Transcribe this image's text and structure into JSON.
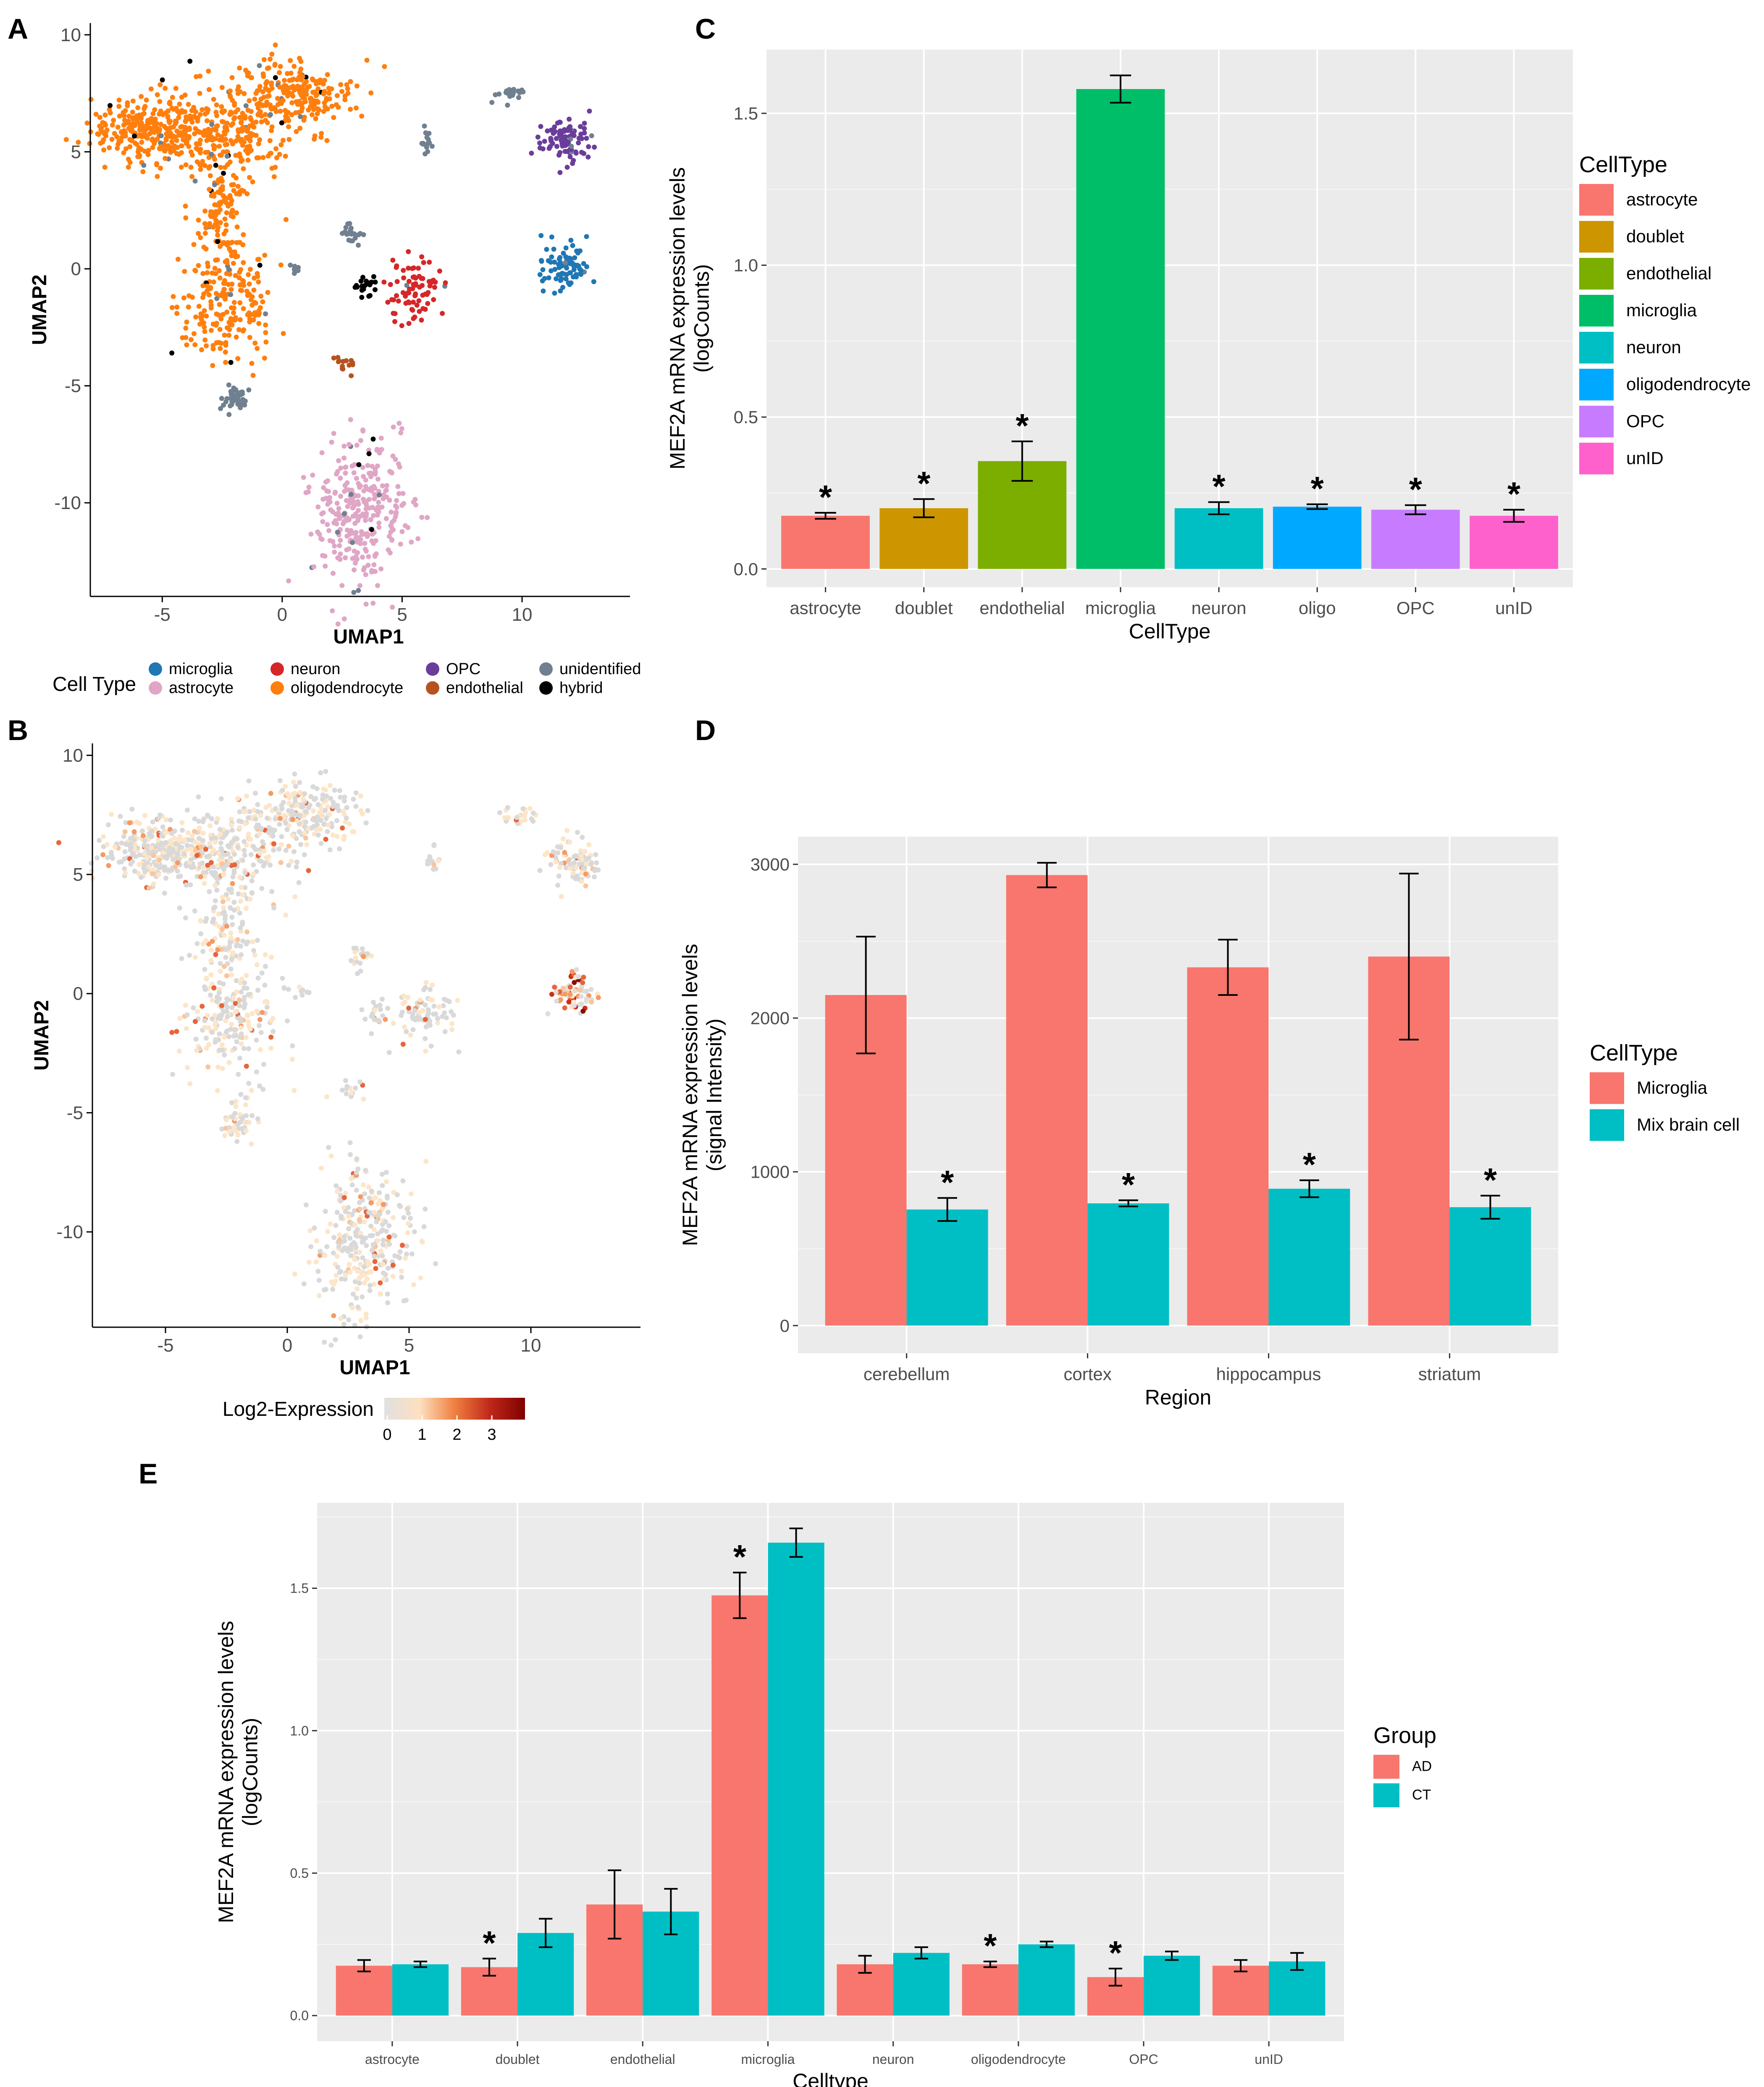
{
  "panels": {
    "a": "A",
    "b": "B",
    "c": "C",
    "d": "D",
    "e": "E"
  },
  "chart_data": [
    {
      "panel": "A",
      "type": "scatter",
      "title": "",
      "xlabel": "UMAP1",
      "ylabel": "UMAP2",
      "xlim": [
        -8,
        14.5
      ],
      "ylim": [
        -14,
        10.5
      ],
      "xticks": [
        -5,
        0,
        5,
        10
      ],
      "yticks": [
        -10,
        -5,
        0,
        5,
        10
      ],
      "legend_title": "Cell Type",
      "legend": [
        {
          "label": "microglia",
          "color": "#1f77b4"
        },
        {
          "label": "astrocyte",
          "color": "#e0a6c6"
        },
        {
          "label": "neuron",
          "color": "#d62728"
        },
        {
          "label": "oligodendrocyte",
          "color": "#ff7f0e"
        },
        {
          "label": "OPC",
          "color": "#6a3d9a"
        },
        {
          "label": "endothelial",
          "color": "#b5531f"
        },
        {
          "label": "unidentified",
          "color": "#708090"
        },
        {
          "label": "hybrid",
          "color": "#000000"
        }
      ],
      "clusters": [
        {
          "type": "oligodendrocyte",
          "cx": -5.5,
          "cy": 6,
          "rx": 2.2,
          "ry": 1.3,
          "n": 260
        },
        {
          "type": "oligodendrocyte",
          "cx": -2.5,
          "cy": 5.8,
          "rx": 2.5,
          "ry": 1.6,
          "n": 260
        },
        {
          "type": "oligodendrocyte",
          "cx": 0.5,
          "cy": 7.5,
          "rx": 2.2,
          "ry": 1.3,
          "n": 220
        },
        {
          "type": "oligodendrocyte",
          "cx": -2.5,
          "cy": 2.5,
          "rx": 1.0,
          "ry": 2.0,
          "n": 110
        },
        {
          "type": "oligodendrocyte",
          "cx": -2.3,
          "cy": -1.2,
          "rx": 1.8,
          "ry": 2.5,
          "n": 210
        },
        {
          "type": "astrocyte",
          "cx": 3.2,
          "cy": -10.5,
          "rx": 1.8,
          "ry": 2.8,
          "n": 320
        },
        {
          "type": "OPC",
          "cx": 11.8,
          "cy": 5.5,
          "rx": 1.0,
          "ry": 0.9,
          "n": 90
        },
        {
          "type": "microglia",
          "cx": 11.8,
          "cy": 0,
          "rx": 0.9,
          "ry": 0.9,
          "n": 80
        },
        {
          "type": "neuron",
          "cx": 5.5,
          "cy": -0.8,
          "rx": 1.2,
          "ry": 1.2,
          "n": 80
        },
        {
          "type": "unidentified",
          "cx": -2.0,
          "cy": -5.5,
          "rx": 0.6,
          "ry": 0.5,
          "n": 40
        },
        {
          "type": "unidentified",
          "cx": 9.6,
          "cy": 7.5,
          "rx": 0.7,
          "ry": 0.4,
          "n": 25
        },
        {
          "type": "unidentified",
          "cx": 3,
          "cy": 1.5,
          "rx": 0.4,
          "ry": 0.5,
          "n": 20
        },
        {
          "type": "unidentified",
          "cx": 6,
          "cy": 5.5,
          "rx": 0.2,
          "ry": 0.5,
          "n": 15
        },
        {
          "type": "endothelial",
          "cx": 2.5,
          "cy": -4,
          "rx": 0.6,
          "ry": 0.4,
          "n": 14
        },
        {
          "type": "hybrid",
          "cx": 3.5,
          "cy": -0.8,
          "rx": 0.6,
          "ry": 0.5,
          "n": 20
        },
        {
          "type": "unidentified",
          "cx": 0.5,
          "cy": 0,
          "rx": 0.3,
          "ry": 0.3,
          "n": 8
        }
      ]
    },
    {
      "panel": "B",
      "type": "scatter",
      "title": "",
      "xlabel": "UMAP1",
      "ylabel": "UMAP2",
      "xlim": [
        -8,
        14.5
      ],
      "ylim": [
        -14,
        10.5
      ],
      "xticks": [
        -5,
        0,
        5,
        10
      ],
      "yticks": [
        -10,
        -5,
        0,
        5,
        10
      ],
      "colorbar_title": "Log2-Expression",
      "colorbar_ticks": [
        0,
        1,
        2,
        3
      ],
      "colorbar_colors": [
        "#e0e0e0",
        "#fde0c0",
        "#f08040",
        "#c0281a",
        "#7f0000"
      ]
    },
    {
      "panel": "C",
      "type": "bar",
      "title": "",
      "xlabel": "CellType",
      "ylabel": "MEF2A mRNA expression levels",
      "ylabel2": "(logCounts)",
      "categories": [
        "astrocyte",
        "doublet",
        "endothelial",
        "microglia",
        "neuron",
        "oligo",
        "OPC",
        "unID"
      ],
      "values": [
        0.175,
        0.2,
        0.355,
        1.58,
        0.2,
        0.205,
        0.195,
        0.175
      ],
      "errors": [
        0.01,
        0.03,
        0.065,
        0.045,
        0.02,
        0.008,
        0.015,
        0.02
      ],
      "significant": [
        true,
        true,
        true,
        false,
        true,
        true,
        true,
        true
      ],
      "colors": [
        "#f8766d",
        "#cd9600",
        "#7cae00",
        "#00be67",
        "#00bfc4",
        "#00a9ff",
        "#c77cff",
        "#ff61cc"
      ],
      "ylim": [
        -0.06,
        1.71
      ],
      "yticks": [
        0.0,
        0.5,
        1.0,
        1.5
      ],
      "ytick_labels": [
        "0.0",
        "0.5",
        "1.0",
        "1.5"
      ],
      "legend_title": "CellType",
      "legend_labels": [
        "astrocyte",
        "doublet",
        "endothelial",
        "microglia",
        "neuron",
        "oligodendrocyte",
        "OPC",
        "unID"
      ]
    },
    {
      "panel": "D",
      "type": "bar",
      "title": "",
      "xlabel": "Region",
      "ylabel": "MEF2A mRNA expression levels",
      "ylabel2": "(signal Intensity)",
      "categories": [
        "cerebellum",
        "cortex",
        "hippocampus",
        "striatum"
      ],
      "series": [
        {
          "name": "Microglia",
          "color": "#f8766d",
          "values": [
            2150,
            2930,
            2330,
            2400
          ],
          "errors": [
            380,
            80,
            180,
            540
          ],
          "significant": [
            false,
            false,
            false,
            false
          ]
        },
        {
          "name": "Mix brain cell",
          "color": "#00bfc4",
          "values": [
            755,
            795,
            890,
            770
          ],
          "errors": [
            75,
            20,
            55,
            75
          ],
          "significant": [
            true,
            true,
            true,
            true
          ]
        }
      ],
      "ylim": [
        -180,
        3180
      ],
      "yticks": [
        0,
        1000,
        2000,
        3000
      ],
      "ytick_labels": [
        "0",
        "1000",
        "2000",
        "3000"
      ],
      "legend_title": "CellType"
    },
    {
      "panel": "E",
      "type": "bar",
      "title": "",
      "xlabel": "Celltype",
      "ylabel": "MEF2A mRNA expression levels",
      "ylabel2": "(logCounts)",
      "categories": [
        "astrocyte",
        "doublet",
        "endothelial",
        "microglia",
        "neuron",
        "oligodendrocyte",
        "OPC",
        "unID"
      ],
      "series": [
        {
          "name": "AD",
          "color": "#f8766d",
          "values": [
            0.175,
            0.17,
            0.39,
            1.475,
            0.18,
            0.18,
            0.135,
            0.175
          ],
          "errors": [
            0.02,
            0.03,
            0.12,
            0.08,
            0.03,
            0.01,
            0.03,
            0.02
          ],
          "significant": [
            false,
            true,
            false,
            true,
            false,
            true,
            true,
            false
          ]
        },
        {
          "name": "CT",
          "color": "#00bfc4",
          "values": [
            0.18,
            0.29,
            0.365,
            1.66,
            0.22,
            0.25,
            0.21,
            0.19
          ],
          "errors": [
            0.01,
            0.05,
            0.08,
            0.05,
            0.02,
            0.01,
            0.015,
            0.03
          ],
          "significant": [
            false,
            false,
            false,
            false,
            false,
            false,
            false,
            false
          ]
        }
      ],
      "ylim": [
        -0.09,
        1.8
      ],
      "yticks": [
        0.0,
        0.5,
        1.0,
        1.5
      ],
      "ytick_labels": [
        "0.0",
        "0.5",
        "1.0",
        "1.5"
      ],
      "legend_title": "Group"
    }
  ]
}
